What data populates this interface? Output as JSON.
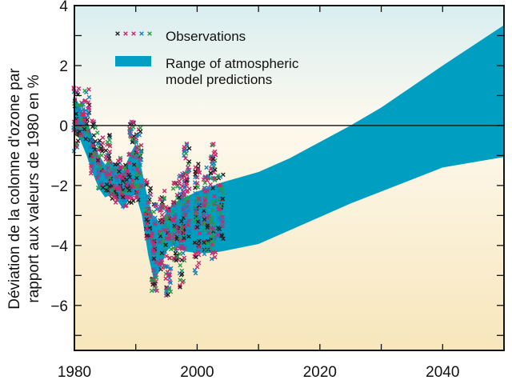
{
  "chart_data": {
    "type": "area",
    "title": "",
    "xlabel": "",
    "ylabel_line1": "Déviation de la colonne d'ozone par",
    "ylabel_line2": "rapport aux valeurs de 1980 en %",
    "xlim": [
      1980,
      2050
    ],
    "ylim": [
      -7.5,
      4
    ],
    "xticks": [
      1980,
      1990,
      2000,
      2010,
      2020,
      2030,
      2040,
      2050
    ],
    "xtick_labels": [
      "1980",
      "2000",
      "2020",
      "2040"
    ],
    "xtick_label_values": [
      1980,
      2000,
      2020,
      2040
    ],
    "yticks": [
      -7,
      -6,
      -5,
      -4,
      -3,
      -2,
      -1,
      0,
      1,
      2,
      3,
      4
    ],
    "ytick_labels": [
      "4",
      "2",
      "0",
      "−2",
      "−4",
      "−6"
    ],
    "ytick_label_values": [
      4,
      2,
      0,
      -2,
      -4,
      -6
    ],
    "reference_line": 0,
    "legend": {
      "placement": "top-left",
      "entries": [
        {
          "label": "Observations",
          "marker": "x",
          "colors": [
            "#222222",
            "#c8286e",
            "#c8286e",
            "#1a7fc0",
            "#2a9a4a"
          ]
        },
        {
          "label_line1": "Range of atmospheric",
          "label_line2": "model predictions",
          "color": "#009fc2"
        }
      ]
    },
    "colors": {
      "band": "#009fc2",
      "bg_top": "#d9eef0",
      "bg_mid": "#fdf9ee",
      "bg_bottom": "#f8e6bb"
    },
    "band": {
      "name": "Range of atmospheric model predictions",
      "x": [
        1980,
        1981,
        1982,
        1983,
        1984,
        1985,
        1986,
        1987,
        1988,
        1989,
        1990,
        1991,
        1992,
        1993,
        1994,
        1995,
        1996,
        1997,
        1998,
        2000,
        2002,
        2004,
        2010,
        2015,
        2020,
        2025,
        2030,
        2040,
        2050
      ],
      "upper": [
        1.0,
        0.6,
        0.2,
        -0.4,
        -1.0,
        -1.3,
        -1.2,
        -1.3,
        -1.5,
        -1.0,
        -0.6,
        -1.5,
        -2.5,
        -3.1,
        -3.2,
        -2.9,
        -2.6,
        -2.5,
        -2.4,
        -2.2,
        -2.05,
        -1.9,
        -1.55,
        -1.1,
        -0.55,
        0.0,
        0.6,
        2.0,
        3.35
      ],
      "lower": [
        -0.2,
        -0.5,
        -1.0,
        -1.6,
        -2.1,
        -2.4,
        -2.3,
        -2.5,
        -2.8,
        -2.4,
        -2.3,
        -3.0,
        -4.3,
        -5.2,
        -4.8,
        -4.2,
        -4.0,
        -4.1,
        -4.2,
        -4.25,
        -4.25,
        -4.2,
        -3.95,
        -3.5,
        -3.05,
        -2.6,
        -2.2,
        -1.4,
        -1.05
      ]
    },
    "observations": {
      "name": "Observations",
      "note": "5 data sets, monthly values, approx. 1980-2004",
      "clusters": [
        {
          "year": 1980.3,
          "min": -0.9,
          "max": 1.4
        },
        {
          "year": 1981.2,
          "min": -0.4,
          "max": 0.8
        },
        {
          "year": 1982.0,
          "min": -0.5,
          "max": 1.3
        },
        {
          "year": 1983.0,
          "min": -1.6,
          "max": 0.2
        },
        {
          "year": 1984.2,
          "min": -2.1,
          "max": -0.2
        },
        {
          "year": 1985.5,
          "min": -2.3,
          "max": -0.3
        },
        {
          "year": 1986.5,
          "min": -2.6,
          "max": -1.2
        },
        {
          "year": 1987.5,
          "min": -2.4,
          "max": -1.0
        },
        {
          "year": 1988.3,
          "min": -2.7,
          "max": -1.3
        },
        {
          "year": 1989.3,
          "min": -2.6,
          "max": 0.2
        },
        {
          "year": 1990.5,
          "min": -2.5,
          "max": 0.0
        },
        {
          "year": 1992.0,
          "min": -3.8,
          "max": -1.8
        },
        {
          "year": 1993.0,
          "min": -5.6,
          "max": -2.6
        },
        {
          "year": 1994.3,
          "min": -4.8,
          "max": -2.1
        },
        {
          "year": 1995.3,
          "min": -5.7,
          "max": -2.6
        },
        {
          "year": 1996.5,
          "min": -4.5,
          "max": -1.8
        },
        {
          "year": 1997.5,
          "min": -5.4,
          "max": -1.6
        },
        {
          "year": 1998.3,
          "min": -4.0,
          "max": -0.6
        },
        {
          "year": 2000.0,
          "min": -5.0,
          "max": -1.2
        },
        {
          "year": 2001.5,
          "min": -4.3,
          "max": -1.4
        },
        {
          "year": 2002.6,
          "min": -4.6,
          "max": -0.5
        },
        {
          "year": 2003.8,
          "min": -3.8,
          "max": -1.5
        }
      ]
    }
  }
}
